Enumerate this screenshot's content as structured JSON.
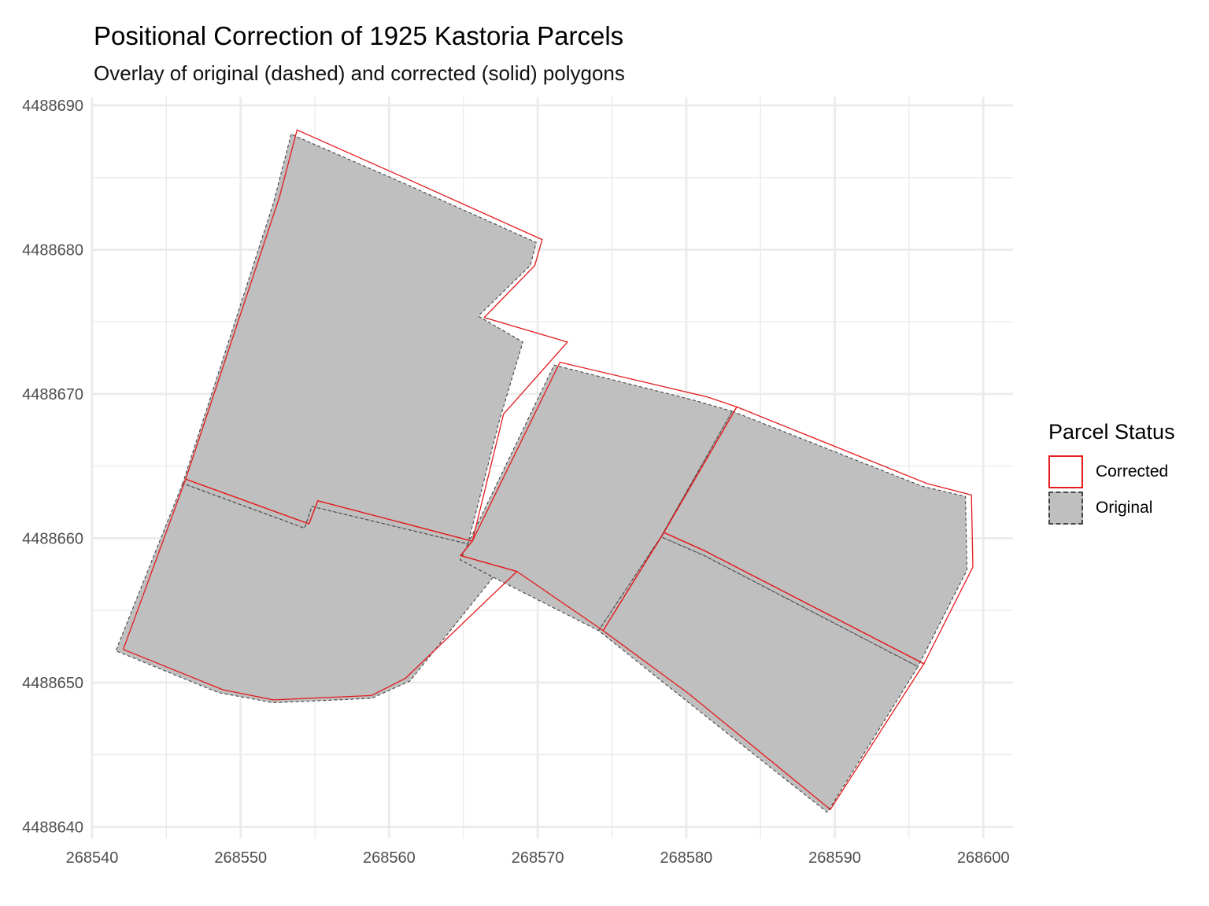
{
  "title": "Positional Correction of 1925 Kastoria Parcels",
  "subtitle": "Overlay of original (dashed) and corrected (solid) polygons",
  "legend": {
    "title": "Parcel Status",
    "items": [
      {
        "label": "Corrected",
        "fill": "#ffffff",
        "stroke": "#e41a1c",
        "dashed": false
      },
      {
        "label": "Original",
        "fill": "#bfbfbf",
        "stroke": "#444444",
        "dashed": true
      }
    ]
  },
  "colors": {
    "corrected": "#e41a1c",
    "original_fill": "#bfbfbf",
    "original_stroke": "#444444",
    "grid": "#ebebeb"
  },
  "chart_data": {
    "type": "polygon-map",
    "x_ticks": [
      268540,
      268550,
      268560,
      268570,
      268580,
      268590,
      268600
    ],
    "y_ticks": [
      4488640,
      4488650,
      4488660,
      4488670,
      4488680,
      4488690
    ],
    "xlim": [
      268540,
      268602
    ],
    "ylim": [
      4488639.2,
      4488690.6
    ],
    "grid": true,
    "legend_position": "right",
    "original_parcels": [
      [
        [
          268553.4,
          4488688.0
        ],
        [
          268552.2,
          4488683.2
        ],
        [
          268546.1,
          4488663.8
        ],
        [
          268554.3,
          4488660.7
        ],
        [
          268554.8,
          4488662.2
        ],
        [
          268565.3,
          4488659.6
        ],
        [
          268567.4,
          4488668.1
        ],
        [
          268569.0,
          4488673.6
        ],
        [
          268566.0,
          4488675.4
        ],
        [
          268569.5,
          4488678.9
        ],
        [
          268569.9,
          4488680.5
        ],
        [
          268561.0,
          4488684.6
        ]
      ],
      [
        [
          268546.1,
          4488663.8
        ],
        [
          268541.6,
          4488652.2
        ],
        [
          268548.5,
          4488649.3
        ],
        [
          268552.2,
          4488648.6
        ],
        [
          268558.8,
          4488648.9
        ],
        [
          268561.4,
          4488650.1
        ],
        [
          268567.0,
          4488657.3
        ],
        [
          268564.8,
          4488658.5
        ],
        [
          268565.3,
          4488659.6
        ],
        [
          268554.8,
          4488662.2
        ],
        [
          268554.3,
          4488660.7
        ]
      ],
      [
        [
          268565.3,
          4488659.6
        ],
        [
          268571.1,
          4488672.0
        ],
        [
          268580.4,
          4488669.6
        ],
        [
          268583.1,
          4488668.8
        ],
        [
          268578.3,
          4488660.1
        ],
        [
          268574.1,
          4488653.6
        ],
        [
          268567.0,
          4488657.3
        ],
        [
          268564.8,
          4488658.5
        ]
      ],
      [
        [
          268583.1,
          4488668.8
        ],
        [
          268595.9,
          4488663.6
        ],
        [
          268598.8,
          4488662.9
        ],
        [
          268598.9,
          4488657.8
        ],
        [
          268595.6,
          4488651.1
        ],
        [
          268581.2,
          4488658.8
        ],
        [
          268578.3,
          4488660.1
        ]
      ],
      [
        [
          268578.3,
          4488660.1
        ],
        [
          268574.1,
          4488653.6
        ],
        [
          268579.8,
          4488648.9
        ],
        [
          268589.5,
          4488641.0
        ],
        [
          268595.6,
          4488651.1
        ],
        [
          268581.2,
          4488658.8
        ]
      ]
    ],
    "corrected_parcels": [
      [
        [
          268553.8,
          4488688.3
        ],
        [
          268552.6,
          4488683.6
        ],
        [
          268546.3,
          4488664.1
        ],
        [
          268554.6,
          4488661.0
        ],
        [
          268555.2,
          4488662.6
        ],
        [
          268565.6,
          4488659.8
        ],
        [
          268567.7,
          4488668.6
        ],
        [
          268572.0,
          4488673.6
        ],
        [
          268566.4,
          4488675.3
        ],
        [
          268569.8,
          4488678.9
        ],
        [
          268570.3,
          4488680.7
        ],
        [
          268561.0,
          4488685.0
        ]
      ],
      [
        [
          268546.3,
          4488664.1
        ],
        [
          268542.1,
          4488652.3
        ],
        [
          268548.8,
          4488649.5
        ],
        [
          268552.2,
          4488648.8
        ],
        [
          268558.8,
          4488649.1
        ],
        [
          268561.1,
          4488650.3
        ],
        [
          268568.6,
          4488657.7
        ],
        [
          268564.8,
          4488658.8
        ],
        [
          268565.6,
          4488659.8
        ],
        [
          268555.2,
          4488662.6
        ],
        [
          268554.6,
          4488661.0
        ]
      ],
      [
        [
          268565.6,
          4488659.8
        ],
        [
          268571.5,
          4488672.2
        ],
        [
          268581.4,
          4488669.8
        ],
        [
          268583.4,
          4488669.1
        ],
        [
          268578.5,
          4488660.4
        ],
        [
          268574.4,
          4488653.6
        ],
        [
          268568.6,
          4488657.7
        ],
        [
          268564.8,
          4488658.8
        ]
      ],
      [
        [
          268583.4,
          4488669.1
        ],
        [
          268596.2,
          4488663.8
        ],
        [
          268599.2,
          4488663.0
        ],
        [
          268599.3,
          4488658.0
        ],
        [
          268596.0,
          4488651.3
        ],
        [
          268581.3,
          4488659.1
        ],
        [
          268578.5,
          4488660.4
        ]
      ],
      [
        [
          268578.5,
          4488660.4
        ],
        [
          268574.4,
          4488653.6
        ],
        [
          268580.2,
          4488649.2
        ],
        [
          268589.7,
          4488641.2
        ],
        [
          268596.0,
          4488651.3
        ],
        [
          268581.3,
          4488659.1
        ]
      ]
    ]
  }
}
